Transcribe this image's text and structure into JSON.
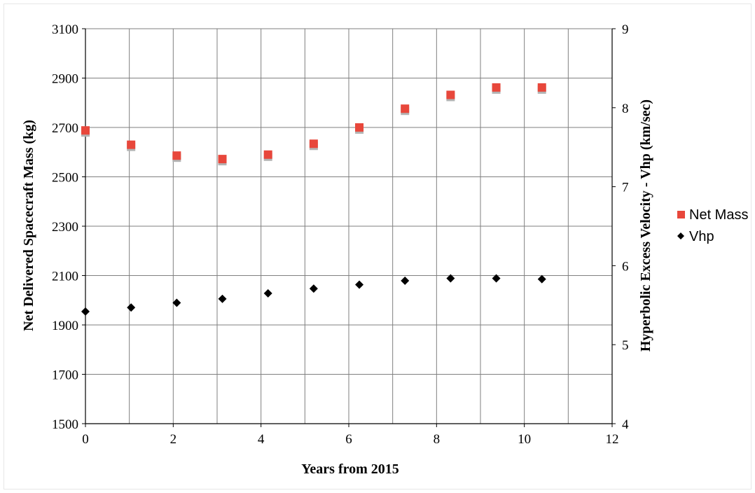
{
  "chart_data": {
    "type": "scatter",
    "xlabel": "Years from 2015",
    "ylabel": "Net Delivered Spacecraft Mass (kg)",
    "y2label": "Hyperbolic Excess Velocity - Vhp (km/sec)",
    "xlim": [
      0,
      12
    ],
    "ylim": [
      1500,
      3100
    ],
    "y2lim": [
      4,
      9
    ],
    "xticks": [
      "0",
      "2",
      "4",
      "6",
      "8",
      "10",
      "12"
    ],
    "yticks": [
      "1500",
      "1700",
      "1900",
      "2100",
      "2300",
      "2500",
      "2700",
      "2900",
      "3100"
    ],
    "y2ticks": [
      "4",
      "5",
      "6",
      "7",
      "8",
      "9"
    ],
    "grid": true,
    "legend_position": "right",
    "series": [
      {
        "name": "Net Mass",
        "axis": "left",
        "marker": "square",
        "color": "#e8473b",
        "x": [
          0,
          1.04,
          2.08,
          3.12,
          4.16,
          5.2,
          6.24,
          7.28,
          8.32,
          9.36,
          10.4
        ],
        "y": [
          2688,
          2630,
          2586,
          2572,
          2590,
          2634,
          2700,
          2776,
          2832,
          2862,
          2862
        ]
      },
      {
        "name": "Vhp",
        "axis": "right",
        "marker": "diamond",
        "color": "#000000",
        "x": [
          0,
          1.04,
          2.08,
          3.12,
          4.16,
          5.2,
          6.24,
          7.28,
          8.32,
          9.36,
          10.4
        ],
        "y": [
          5.42,
          5.47,
          5.53,
          5.58,
          5.65,
          5.71,
          5.76,
          5.81,
          5.84,
          5.84,
          5.83
        ]
      }
    ]
  }
}
